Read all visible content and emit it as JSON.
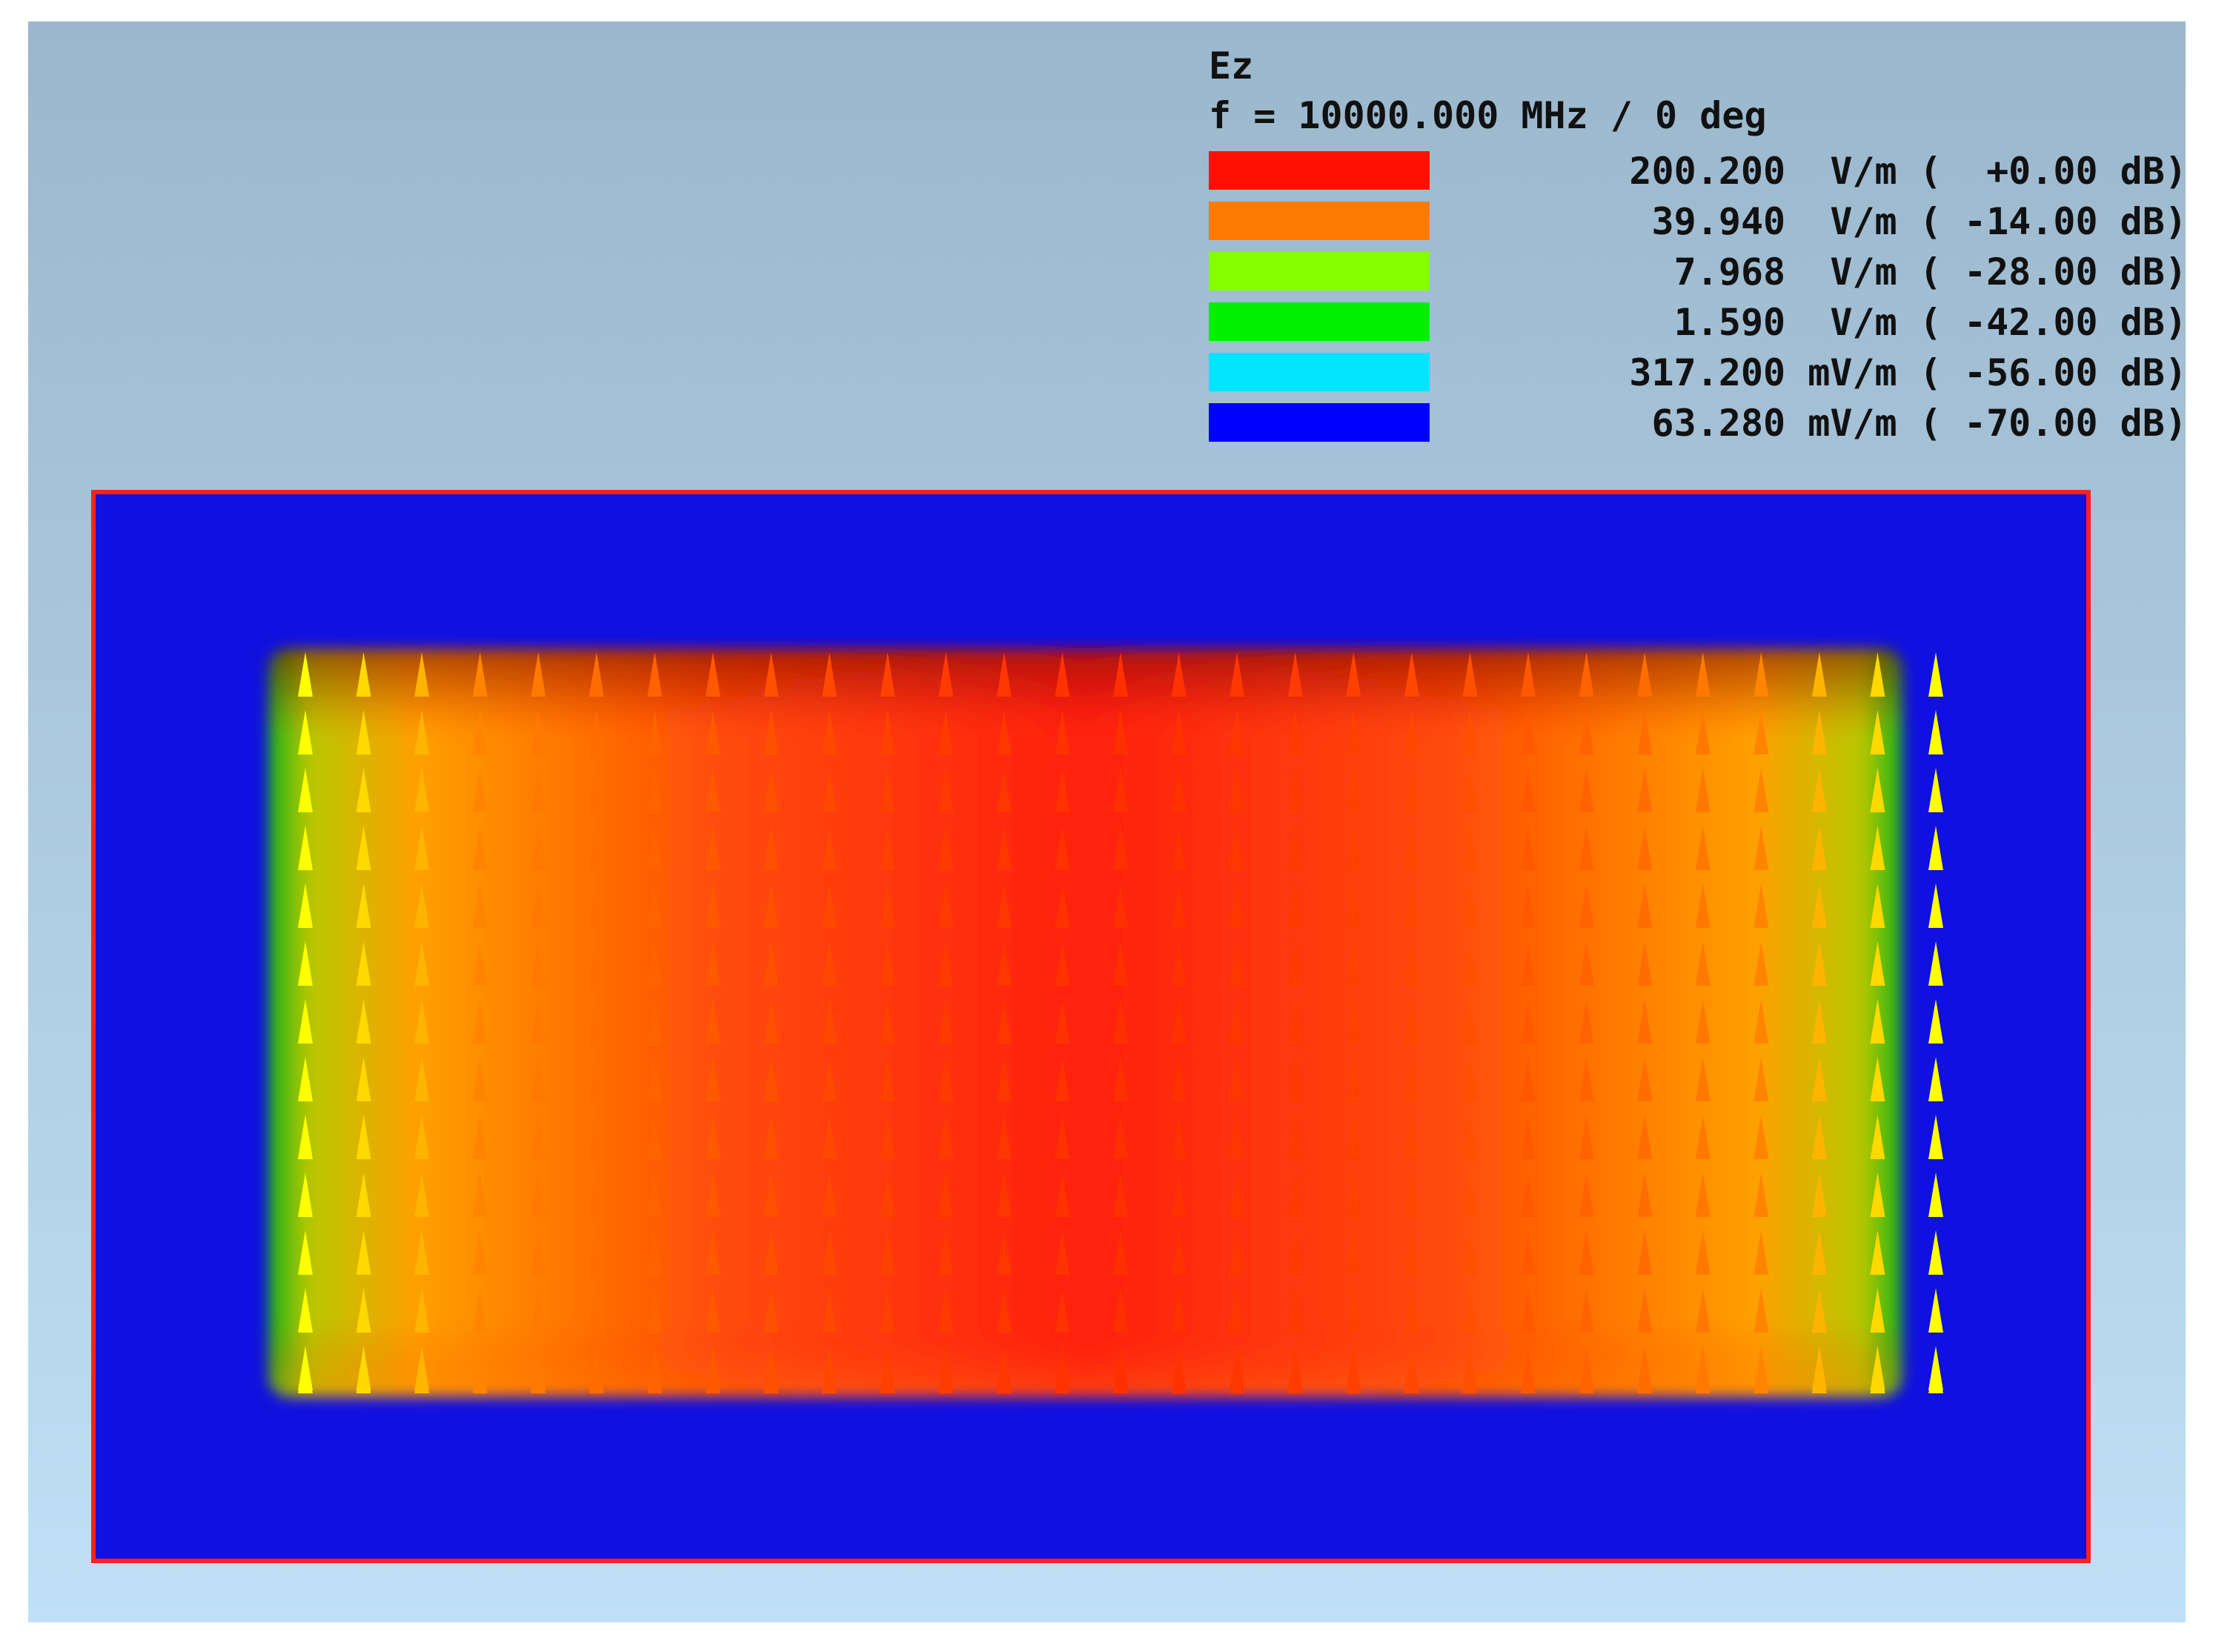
{
  "legend": {
    "quantity": "Ez",
    "frequency": "f = 10000.000 MHz / 0 deg",
    "entries": [
      {
        "color": "#ff1000",
        "text": "200.200  V/m (  +0.00 dB)"
      },
      {
        "color": "#ff7a00",
        "text": "39.940  V/m ( -14.00 dB)"
      },
      {
        "color": "#84ff00",
        "text": "7.968  V/m ( -28.00 dB)"
      },
      {
        "color": "#00f000",
        "text": "1.590  V/m ( -42.00 dB)"
      },
      {
        "color": "#00e4ff",
        "text": "317.200 mV/m ( -56.00 dB)"
      },
      {
        "color": "#0000ff",
        "text": "63.280 mV/m ( -70.00 dB)"
      }
    ]
  },
  "colors": {
    "domain_fill": "#1010e0",
    "domain_border": "#ff2020",
    "field_max": "#ff2010",
    "field_edge": "#ffa000",
    "arrow_edge": "#ffff00",
    "arrow_center": "#ff3000"
  },
  "icons": {
    "field_vectors": "cone-arrow-icon"
  }
}
